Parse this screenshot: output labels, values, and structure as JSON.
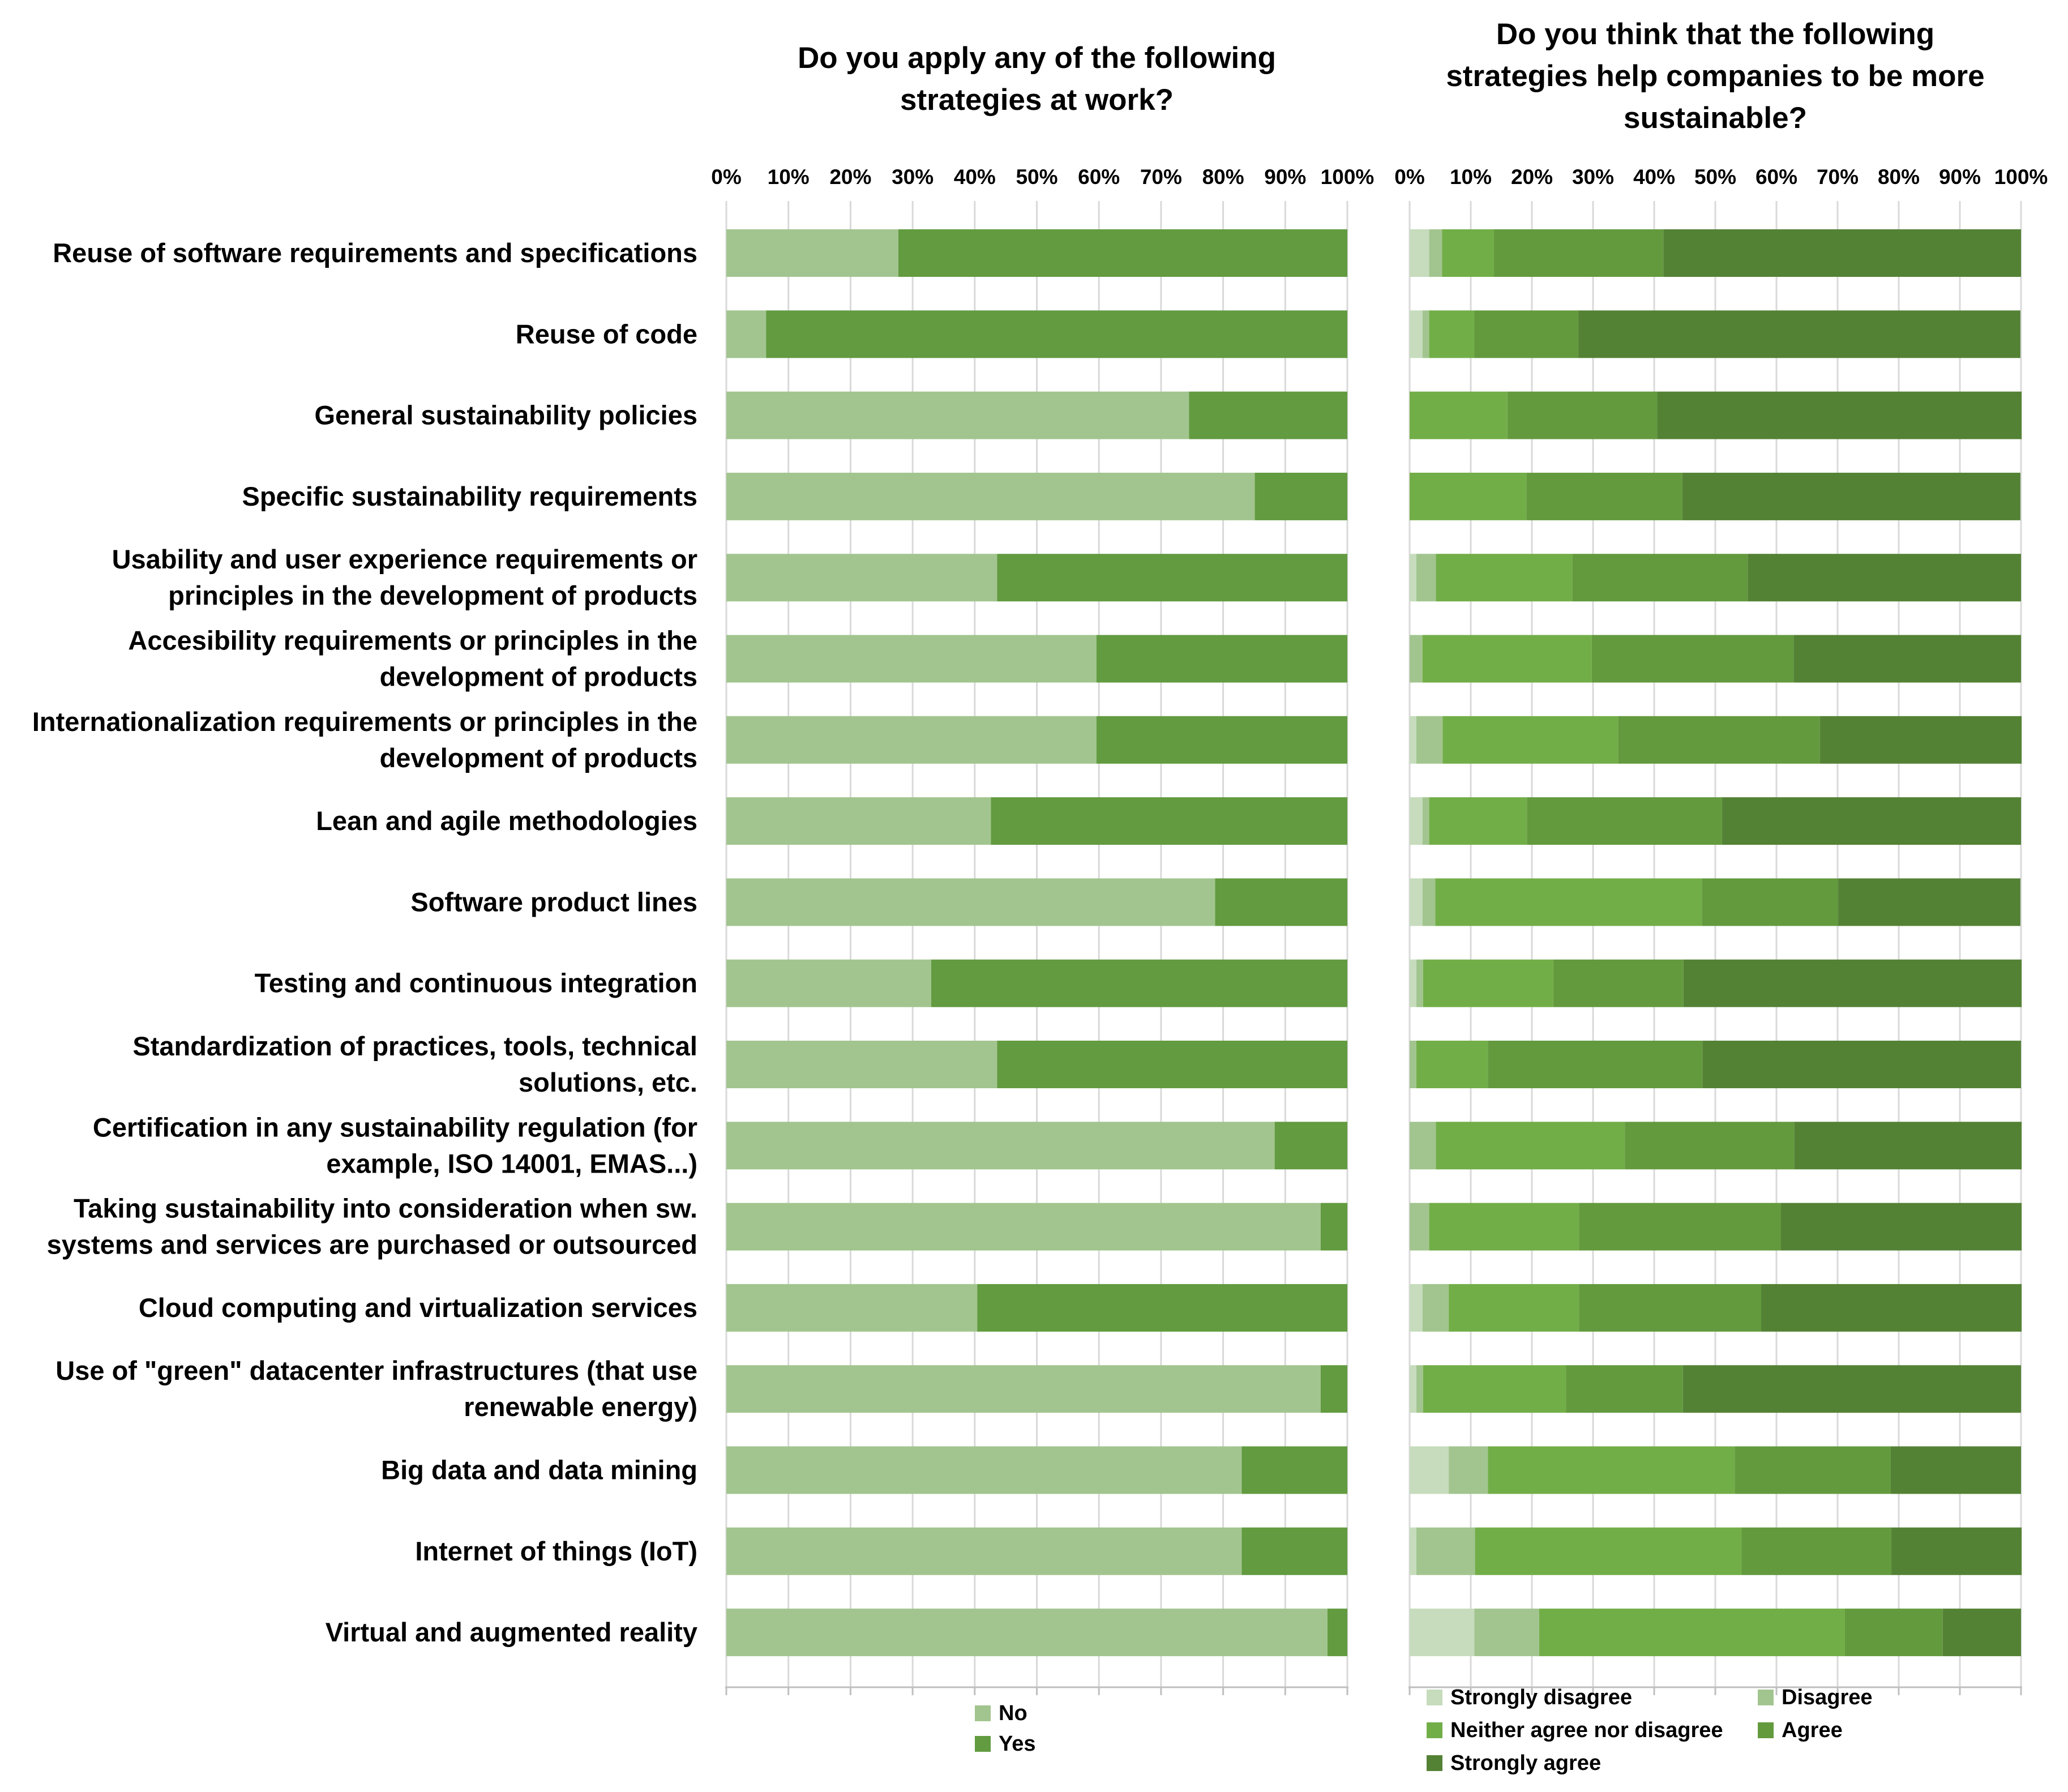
{
  "chart_data": [
    {
      "type": "bar",
      "orientation": "horizontal",
      "stacked": "percent",
      "title": "Do you apply any of the following strategies at work?",
      "title_lines": [
        "Do you apply any of the following",
        "strategies at work?"
      ],
      "xlim": [
        0,
        100
      ],
      "xticks": [
        "0%",
        "10%",
        "20%",
        "30%",
        "40%",
        "50%",
        "60%",
        "70%",
        "80%",
        "90%",
        "100%"
      ],
      "grid": true,
      "legend_position": "bottom",
      "categories": [
        "Reuse of software requirements and specifications",
        "Reuse of code",
        "General sustainability policies",
        "Specific sustainability requirements",
        "Usability and user experience requirements or principles in the development of products",
        "Accesibility requirements or principles in the development of products",
        "Internationalization requirements or principles in the development of products",
        "Lean and agile methodologies",
        "Software product lines",
        "Testing and continuous integration",
        "Standardization of practices, tools, technical solutions, etc.",
        "Certification in any sustainability regulation (for example, ISO 14001, EMAS...)",
        "Taking sustainability into consideration when sw. systems and services are purchased or outsourced",
        "Cloud computing and virtualization services",
        "Use of \"green\" datacenter infrastructures (that use renewable energy)",
        "Big data and data mining",
        "Internet of things (IoT)",
        "Virtual and augmented reality"
      ],
      "series": [
        {
          "name": "No",
          "color": "#a2c58f",
          "values": [
            27.7,
            6.4,
            74.5,
            85.1,
            43.6,
            59.6,
            59.6,
            42.6,
            78.7,
            33.0,
            43.6,
            88.3,
            95.7,
            40.4,
            95.7,
            83.0,
            83.0,
            96.8
          ]
        },
        {
          "name": "Yes",
          "color": "#629b40",
          "values": [
            72.3,
            93.6,
            25.5,
            14.9,
            56.4,
            40.4,
            40.4,
            57.4,
            21.3,
            67.0,
            56.4,
            11.7,
            4.3,
            59.6,
            4.3,
            17.0,
            17.0,
            3.2
          ]
        }
      ]
    },
    {
      "type": "bar",
      "orientation": "horizontal",
      "stacked": "percent",
      "title": "Do you think that the following strategies help companies to be more sustainable?",
      "title_lines": [
        "Do you think that the following",
        "strategies help companies to be more",
        "sustainable?"
      ],
      "xlim": [
        0,
        100
      ],
      "xticks": [
        "0%",
        "10%",
        "20%",
        "30%",
        "40%",
        "50%",
        "60%",
        "70%",
        "80%",
        "90%",
        "100%"
      ],
      "grid": true,
      "legend_position": "bottom",
      "series": [
        {
          "name": "Strongly disagree",
          "color": "#c6dcbc",
          "values": [
            3.2,
            2.1,
            0,
            0,
            1.1,
            0,
            1.1,
            2.1,
            2.1,
            1.1,
            0,
            0,
            0,
            2.1,
            1.1,
            6.4,
            1.1,
            10.6
          ]
        },
        {
          "name": "Disagree",
          "color": "#a2c58f",
          "values": [
            2.1,
            1.1,
            0,
            0,
            3.2,
            2.1,
            4.3,
            1.1,
            2.1,
            1.1,
            1.1,
            4.3,
            3.2,
            4.3,
            1.1,
            6.4,
            9.6,
            10.6
          ]
        },
        {
          "name": "Neither agree nor disagree",
          "color": "#72ae48",
          "values": [
            8.5,
            7.4,
            16.0,
            19.1,
            22.3,
            27.7,
            28.7,
            16.0,
            43.6,
            21.3,
            11.7,
            30.9,
            24.5,
            21.3,
            23.4,
            40.4,
            43.6,
            50.0
          ]
        },
        {
          "name": "Agree",
          "color": "#639a3e",
          "values": [
            27.7,
            17.0,
            24.5,
            25.5,
            28.7,
            33.0,
            33.0,
            31.9,
            22.3,
            21.3,
            35.1,
            27.7,
            33.0,
            29.8,
            19.1,
            25.5,
            24.5,
            16.0
          ]
        },
        {
          "name": "Strongly agree",
          "color": "#548235",
          "values": [
            58.5,
            72.3,
            59.6,
            55.3,
            44.7,
            37.2,
            33.0,
            48.9,
            29.8,
            55.3,
            52.1,
            37.2,
            39.4,
            42.6,
            55.3,
            21.3,
            21.3,
            12.8
          ]
        }
      ]
    }
  ]
}
